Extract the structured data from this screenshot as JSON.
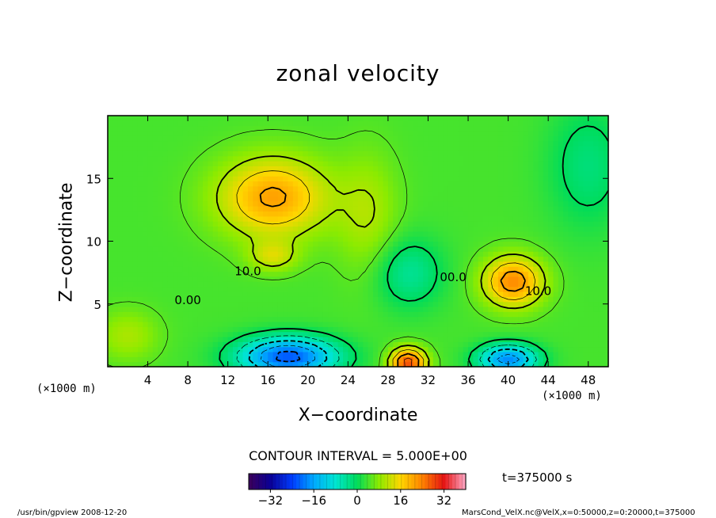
{
  "header": {
    "title": "zonal velocity"
  },
  "footer": {
    "program": "/usr/bin/gpview   2008-12-20",
    "file_info": "MarsCond_VelX.nc@VelX,x=0:50000,z=0:20000,t=375000"
  },
  "colorbar": {
    "contour_interval_text": "CONTOUR INTERVAL = 5.000E+00",
    "time_text": "t=375000 s",
    "range": [
      -40,
      40
    ],
    "tick_values": [
      -32,
      -16,
      0,
      16,
      32
    ],
    "tick_labels": [
      "−32",
      "−16",
      "0",
      "16",
      "32"
    ]
  },
  "chart_data": {
    "type": "heatmap",
    "title": "zonal velocity",
    "xlabel": "X−coordinate",
    "ylabel": "Z−coordinate",
    "x_unit": "(×1000 m)",
    "y_unit": "(×1000 m)",
    "xlim": [
      0,
      50
    ],
    "ylim": [
      0,
      20
    ],
    "x_ticks": [
      4,
      8,
      12,
      16,
      20,
      24,
      28,
      32,
      36,
      40,
      44,
      48
    ],
    "y_ticks": [
      5,
      10,
      15
    ],
    "contour_interval": 5.0,
    "colorbar_range": [
      -40,
      40
    ],
    "contour_labels": [
      {
        "text": "10.0",
        "x": 14,
        "z": 7.3
      },
      {
        "text": "0.00",
        "x": 8,
        "z": 5.0
      },
      {
        "text": "00.0",
        "x": 34.5,
        "z": 6.8
      },
      {
        "text": "10.0",
        "x": 43,
        "z": 5.7
      }
    ],
    "features": [
      {
        "x": 16.5,
        "z": 13.5,
        "value": 17,
        "sx": 5.5,
        "sz": 3.2
      },
      {
        "x": 16.5,
        "z": 8.8,
        "value": 8,
        "sx": 2.4,
        "sz": 1.2
      },
      {
        "x": 40.5,
        "z": 6.8,
        "value": 19,
        "sx": 3.0,
        "sz": 2.0
      },
      {
        "x": 30.0,
        "z": 0.3,
        "value": 24,
        "sx": 1.8,
        "sz": 1.2
      },
      {
        "x": 18.0,
        "z": 0.8,
        "value": -26,
        "sx": 5.0,
        "sz": 1.6
      },
      {
        "x": 40.0,
        "z": 0.6,
        "value": -22,
        "sx": 3.0,
        "sz": 1.2
      },
      {
        "x": 30.0,
        "z": 7.5,
        "value": -8,
        "sx": 3.5,
        "sz": 2.8
      },
      {
        "x": 48.0,
        "z": 16.0,
        "value": -6,
        "sx": 4.0,
        "sz": 5.0
      },
      {
        "x": 2.0,
        "z": 2.5,
        "value": 6,
        "sx": 3.0,
        "sz": 2.0
      },
      {
        "x": 26.0,
        "z": 12.0,
        "value": 6,
        "sx": 3.0,
        "sz": 5.0
      }
    ],
    "background_value": 4
  }
}
